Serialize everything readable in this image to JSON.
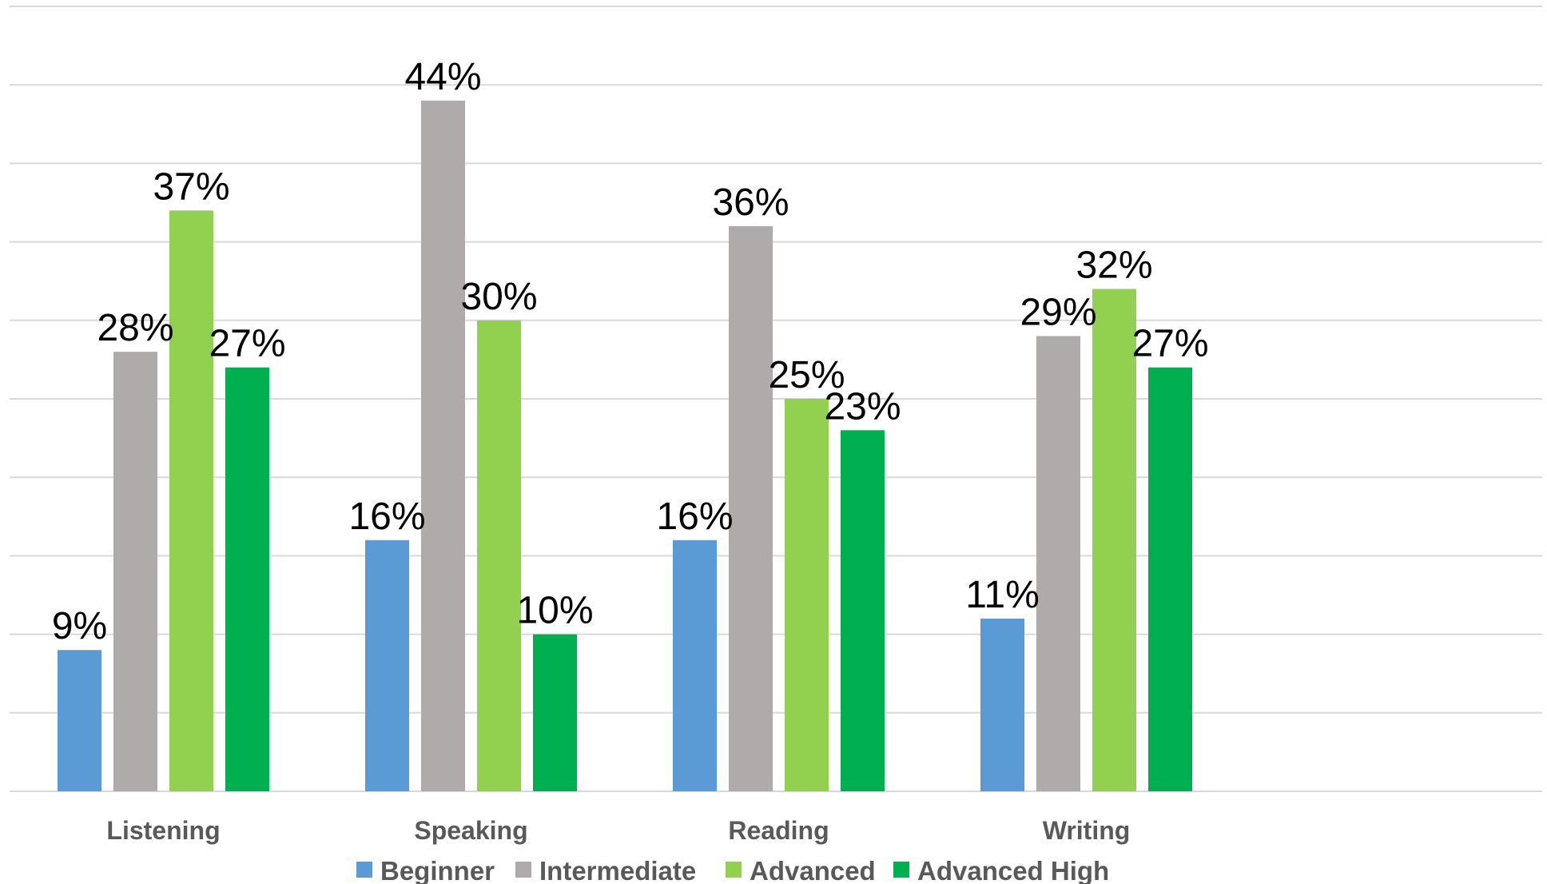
{
  "chart_data": {
    "type": "bar",
    "categories": [
      "Listening",
      "Speaking",
      "Reading",
      "Writing"
    ],
    "series": [
      {
        "name": "Beginner",
        "values": [
          9,
          16,
          16,
          11
        ],
        "labels": [
          "9%",
          "16%",
          "16%",
          "11%"
        ],
        "color": "#5b9bd5"
      },
      {
        "name": "Intermediate",
        "values": [
          28,
          44,
          36,
          29
        ],
        "labels": [
          "28%",
          "44%",
          "36%",
          "29%"
        ],
        "color": "#afabab"
      },
      {
        "name": "Advanced",
        "values": [
          37,
          30,
          25,
          32
        ],
        "labels": [
          "37%",
          "30%",
          "25%",
          "32%"
        ],
        "color": "#92d050"
      },
      {
        "name": "Advanced High",
        "values": [
          27,
          10,
          23,
          27
        ],
        "labels": [
          "27%",
          "10%",
          "23%",
          "27%"
        ],
        "color": "#00b050"
      }
    ],
    "ylim": [
      0,
      50
    ],
    "grid": true,
    "legend": "bottom",
    "title": "",
    "xlabel": "",
    "ylabel": ""
  }
}
